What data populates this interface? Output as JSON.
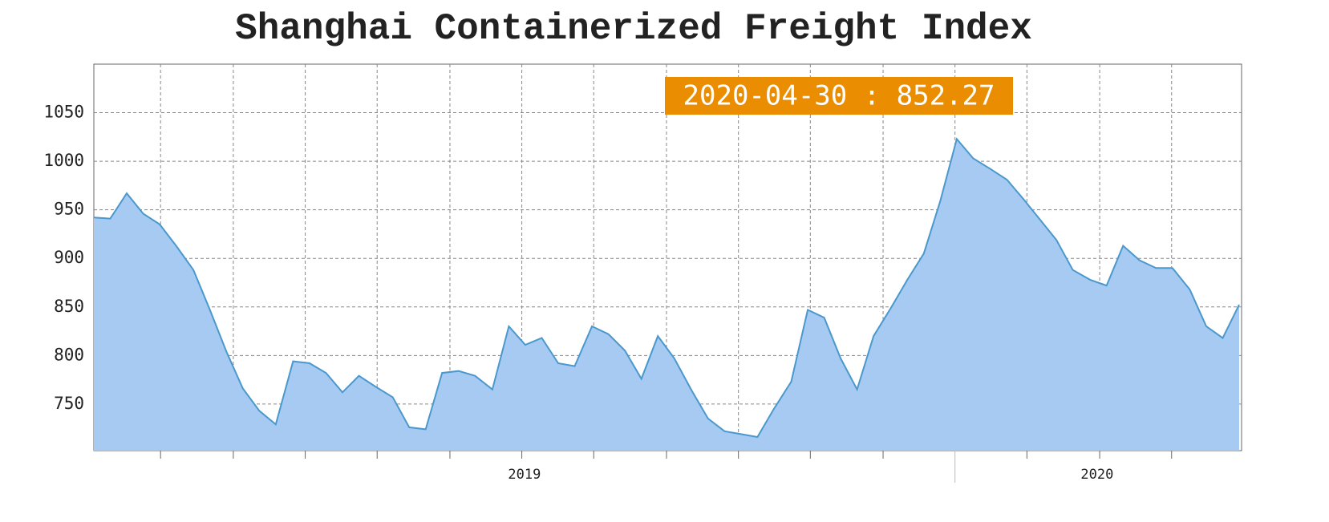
{
  "chart_data": {
    "type": "area",
    "title": "Shanghai Containerized Freight Index",
    "annotation": "2020-04-30 : 852.27",
    "x": [
      2019.006,
      2019.025,
      2019.044,
      2019.063,
      2019.082,
      2019.101,
      2019.121,
      2019.14,
      2019.159,
      2019.178,
      2019.197,
      2019.216,
      2019.236,
      2019.255,
      2019.274,
      2019.293,
      2019.312,
      2019.331,
      2019.351,
      2019.37,
      2019.389,
      2019.408,
      2019.427,
      2019.446,
      2019.466,
      2019.485,
      2019.504,
      2019.523,
      2019.542,
      2019.561,
      2019.581,
      2019.6,
      2019.619,
      2019.638,
      2019.657,
      2019.676,
      2019.696,
      2019.715,
      2019.734,
      2019.753,
      2019.772,
      2019.791,
      2019.811,
      2019.83,
      2019.849,
      2019.868,
      2019.887,
      2019.906,
      2019.926,
      2019.945,
      2019.964,
      2019.983,
      2020.002,
      2020.021,
      2020.041,
      2020.06,
      2020.079,
      2020.098,
      2020.117,
      2020.136,
      2020.156,
      2020.175,
      2020.194,
      2020.213,
      2020.232,
      2020.251,
      2020.271,
      2020.29,
      2020.309,
      2020.328
    ],
    "values": [
      942,
      941,
      967,
      946,
      935,
      913,
      888,
      847,
      804,
      766,
      743,
      729,
      794,
      792,
      782,
      762,
      779,
      768,
      757,
      726,
      724,
      782,
      784,
      779,
      765,
      830,
      811,
      818,
      792,
      789,
      830,
      822,
      805,
      776,
      820,
      797,
      764,
      735,
      722,
      719,
      716,
      745,
      773,
      847,
      839,
      797,
      765,
      820,
      849,
      878,
      905,
      959,
      1023,
      1003,
      992,
      981,
      961,
      940,
      919,
      888,
      878,
      872,
      913,
      898,
      890,
      890,
      868,
      830,
      818,
      852.27
    ],
    "fill": "#a6caf2",
    "color": "#4a98cc",
    "xlim": [
      2019.006,
      2020.328
    ],
    "xticks": [
      2019.083,
      2019.167,
      2019.25,
      2019.333,
      2019.417,
      2019.5,
      2019.583,
      2019.667,
      2019.75,
      2019.833,
      2019.917,
      2020,
      2020.083,
      2020.167,
      2020.25
    ],
    "year_labels": [
      "2019",
      "2020"
    ],
    "ylim": [
      702,
      1100
    ],
    "yticks": [
      750,
      800,
      850,
      900,
      950,
      1000,
      1050
    ],
    "grid": true
  }
}
